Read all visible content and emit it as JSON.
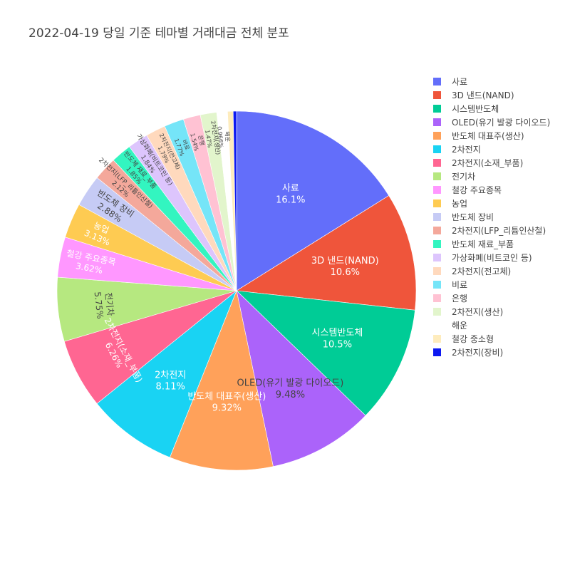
{
  "title": "2022-04-19 당일 기준 테마별 거래대금 전체 분포",
  "chart_data": {
    "type": "pie",
    "title": "2022-04-19 당일 기준 테마별 거래대금 전체 분포",
    "legend_position": "right",
    "direction": "clockwise",
    "labels": [
      "사료",
      "3D 낸드(NAND)",
      "시스템반도체",
      "OLED(유기 발광 다이오드)",
      "반도체 대표주(생산)",
      "2차전지",
      "2차전지(소재_부품)",
      "전기차",
      "철강 주요종목",
      "농업",
      "반도체 장비",
      "2차전지(LFP_리튬인산철)",
      "반도체 재료_부품",
      "가상화폐(비트코인 등)",
      "2차전지(전고체)",
      "비료",
      "은행",
      "2차전지(생산)",
      "해운",
      "철강 중소형",
      "2차전지(장비)"
    ],
    "values": [
      16.1,
      10.6,
      10.5,
      9.48,
      9.32,
      8.11,
      6.26,
      5.75,
      3.62,
      3.13,
      2.88,
      2.12,
      1.85,
      1.84,
      1.79,
      1.77,
      1.54,
      1.47,
      0.966,
      0.5,
      0.3
    ],
    "percent_labels": [
      "16.1%",
      "10.6%",
      "10.5%",
      "9.48%",
      "9.32%",
      "8.11%",
      "6.26%",
      "5.75%",
      "3.62%",
      "3.13%",
      "2.88%",
      "2.12%",
      "1.85%",
      "1.84%",
      "1.79%",
      "1.77%",
      "1.54%",
      "1.47%",
      "0.966%",
      "",
      ""
    ],
    "colors": [
      "#636efa",
      "#ef553b",
      "#00cc96",
      "#ab63fa",
      "#ffa15a",
      "#19d3f3",
      "#ff6692",
      "#b6e880",
      "#ff97ff",
      "#fecb52",
      "#c6cbf5",
      "#f4a89b",
      "#33f5c0",
      "#ddc5fd",
      "#ffd9bd",
      "#75e5f8",
      "#ffc2d3",
      "#e2f5cc",
      "#ffffff",
      "#feecbd",
      "#0d19f1"
    ]
  }
}
